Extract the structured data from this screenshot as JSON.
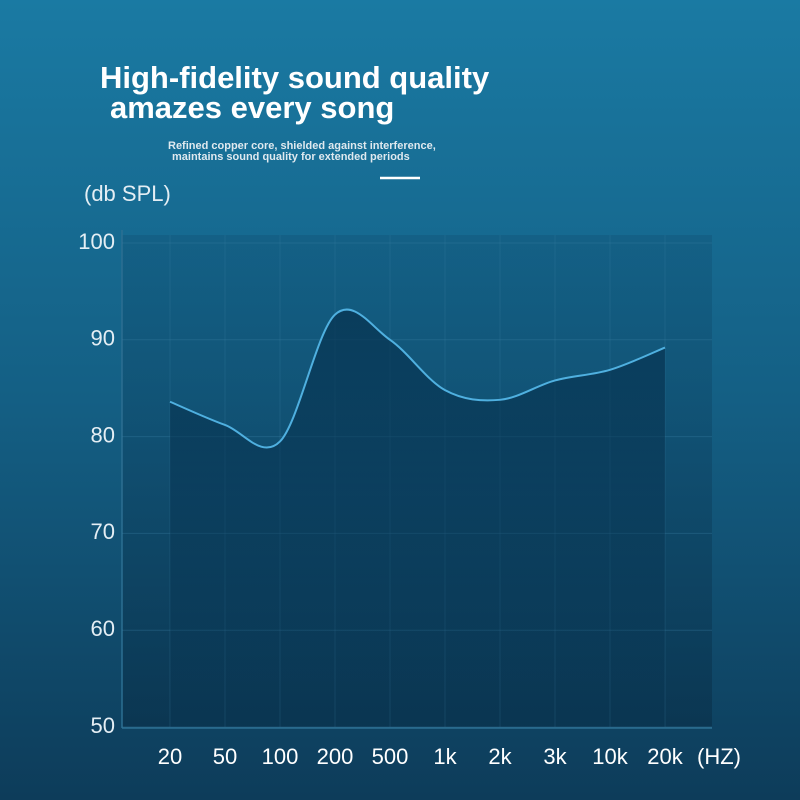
{
  "chart_data": {
    "type": "line",
    "title": [
      "High-fidelity sound quality",
      "amazes every song"
    ],
    "subtitle": [
      "Refined copper core, shielded against interference,",
      "maintains sound quality for extended periods"
    ],
    "y_label": "(db SPL)",
    "x_label": "(HZ)",
    "categories": [
      "20",
      "50",
      "100",
      "200",
      "500",
      "1k",
      "2k",
      "3k",
      "10k",
      "20k"
    ],
    "series": [
      {
        "color": "#4fb0e0",
        "values": [
          83.6,
          81.2,
          79.5,
          92.6,
          90,
          84.8,
          83.8,
          85.8,
          86.9,
          89.2
        ]
      }
    ],
    "ylim": [
      50,
      100
    ],
    "yticks": [
      50,
      60,
      70,
      80,
      90,
      100
    ],
    "grid": true
  }
}
